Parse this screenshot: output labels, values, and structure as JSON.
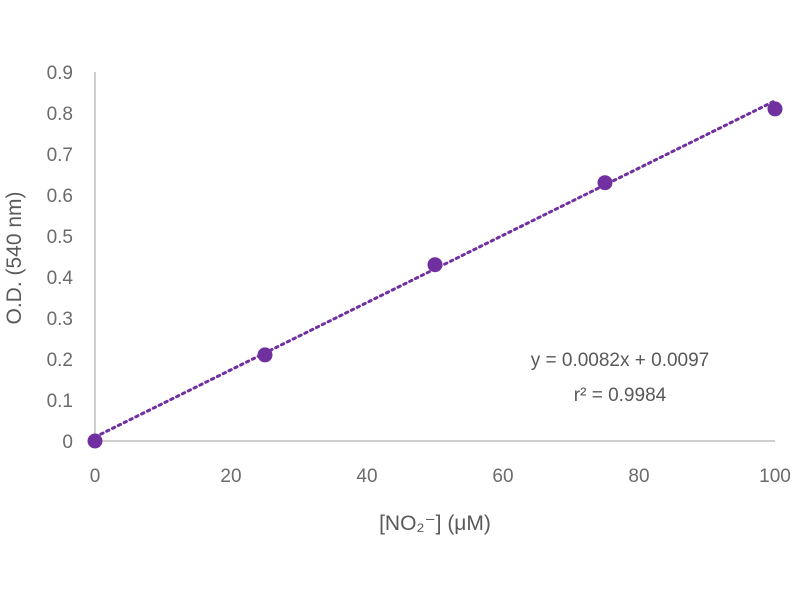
{
  "chart_data": {
    "type": "scatter",
    "title": "",
    "xlabel": "[NO₂⁻] (μM)",
    "ylabel": "O.D. (540 nm)",
    "xlim": [
      0,
      100
    ],
    "ylim": [
      0,
      0.9
    ],
    "x_ticks": [
      "0",
      "20",
      "40",
      "60",
      "80",
      "100"
    ],
    "y_ticks": [
      "0",
      "0.1",
      "0.2",
      "0.3",
      "0.4",
      "0.5",
      "0.6",
      "0.7",
      "0.8",
      "0.9"
    ],
    "grid": false,
    "legend": "none",
    "series": [
      {
        "x": [
          0,
          25,
          50,
          75,
          100
        ],
        "y": [
          0.0,
          0.21,
          0.43,
          0.63,
          0.81
        ],
        "color": "#7030a0"
      }
    ],
    "trendline": {
      "type": "linear",
      "slope": 0.0082,
      "intercept": 0.0097,
      "style": "dotted",
      "color": "#7030a0"
    },
    "annotations": {
      "equation": "y = 0.0082x + 0.0097",
      "r_squared": "r² = 0.9984"
    },
    "colors": {
      "axis": "#bfbfbf",
      "text": "#595959"
    }
  }
}
